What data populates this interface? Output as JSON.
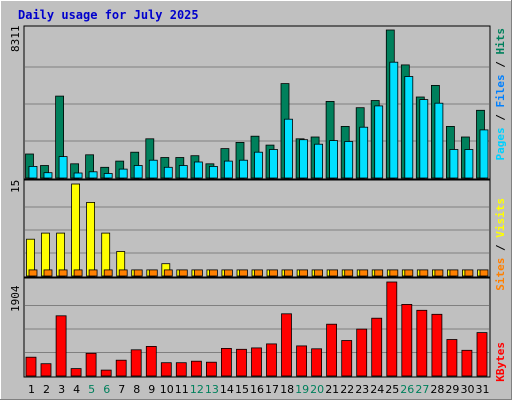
{
  "chart_data": {
    "title": "Daily usage for July 2025",
    "type": "bar",
    "categories": [
      "1",
      "2",
      "3",
      "4",
      "5",
      "6",
      "7",
      "8",
      "9",
      "10",
      "11",
      "12",
      "13",
      "14",
      "15",
      "16",
      "17",
      "18",
      "19",
      "20",
      "21",
      "22",
      "23",
      "24",
      "25",
      "26",
      "27",
      "28",
      "29",
      "30",
      "31"
    ],
    "weekend_categories": [
      "5",
      "6",
      "12",
      "13",
      "19",
      "20",
      "26",
      "27"
    ],
    "panels": [
      {
        "name": "hits-files-pages",
        "max_label": "8311",
        "ymax": 8311,
        "legend": [
          "Pages",
          "Files",
          "Hits"
        ],
        "series": [
          {
            "name": "Hits",
            "color": "#00805c",
            "values": [
              1350,
              700,
              4600,
              800,
              1300,
              600,
              950,
              1450,
              2200,
              1150,
              1150,
              1250,
              800,
              1650,
              2000,
              2350,
              1850,
              5300,
              2200,
              2300,
              4300,
              2900,
              3950,
              4350,
              8311,
              6350,
              4550,
              5200,
              2900,
              2300,
              3800
            ]
          },
          {
            "name": "Files",
            "color": "#00e0ff",
            "values": [
              650,
              300,
              1200,
              280,
              350,
              250,
              500,
              700,
              1000,
              600,
              700,
              900,
              650,
              950,
              1000,
              1450,
              1600,
              3300,
              2150,
              1900,
              2100,
              2050,
              2850,
              4050,
              6500,
              5700,
              4400,
              4200,
              1600,
              1600,
              2700
            ]
          },
          {
            "name": "Pages",
            "color": "#00e0ff",
            "values": [
              0,
              0,
              0,
              0,
              0,
              0,
              0,
              0,
              0,
              0,
              0,
              0,
              0,
              0,
              0,
              0,
              0,
              0,
              0,
              0,
              0,
              0,
              0,
              0,
              0,
              0,
              0,
              0,
              0,
              0,
              0
            ]
          }
        ]
      },
      {
        "name": "visits-sites",
        "max_label": "15",
        "ymax": 15,
        "legend": [
          "Sites",
          "Visits"
        ],
        "series": [
          {
            "name": "Visits",
            "color": "#ffff00",
            "values": [
              6,
              7,
              7,
              15,
              12,
              7,
              4,
              1,
              1,
              2,
              1,
              1,
              1,
              1,
              1,
              1,
              1,
              1,
              1,
              1,
              1,
              1,
              1,
              1,
              1,
              1,
              1,
              1,
              1,
              1,
              1
            ]
          },
          {
            "name": "Sites",
            "color": "#ff8000",
            "values": [
              1,
              1,
              1,
              1,
              1,
              1,
              1,
              1,
              1,
              1,
              1,
              1,
              1,
              1,
              1,
              1,
              1,
              1,
              1,
              1,
              1,
              1,
              1,
              1,
              1,
              1,
              1,
              1,
              1,
              1,
              1
            ]
          }
        ]
      },
      {
        "name": "kbytes",
        "max_label": "1904",
        "ymax": 1904,
        "legend": [
          "KBytes"
        ],
        "series": [
          {
            "name": "KBytes",
            "color": "#ff0000",
            "values": [
              380,
              250,
              1220,
              150,
              460,
              120,
              320,
              530,
              600,
              270,
              270,
              300,
              280,
              560,
              540,
              570,
              650,
              1260,
              610,
              550,
              1050,
              720,
              950,
              1170,
              1904,
              1450,
              1330,
              1250,
              740,
              520,
              880
            ]
          }
        ]
      }
    ]
  },
  "colors": {
    "background": "#c0c0c0",
    "frame": "#ffffff",
    "grid": "#808080",
    "title": "#0000cc",
    "weekday_label": "#000000",
    "weekend_label": "#00805c",
    "legend_slash": "#000000",
    "legend_pages": "#00d0ff",
    "legend_files": "#0080ff",
    "legend_hits": "#00805c",
    "legend_sites": "#ff8000",
    "legend_visits": "#ffff00",
    "legend_kbytes": "#ff0000"
  }
}
